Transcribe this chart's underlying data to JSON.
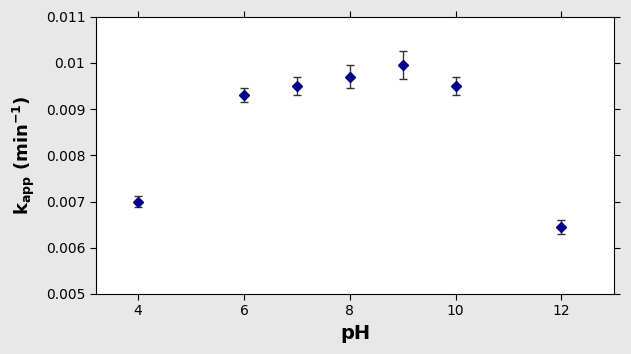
{
  "x": [
    4,
    6,
    7,
    8,
    9,
    10,
    12
  ],
  "y": [
    0.007,
    0.0093,
    0.0095,
    0.0097,
    0.00995,
    0.0095,
    0.00645
  ],
  "yerr": [
    0.00012,
    0.00015,
    0.0002,
    0.00025,
    0.0003,
    0.0002,
    0.00015
  ],
  "marker": "D",
  "marker_color": "#00008B",
  "marker_size": 5,
  "ecolor": "#333333",
  "capsize": 3,
  "xlabel": "pH",
  "ylim": [
    0.005,
    0.011
  ],
  "xlim": [
    3.2,
    13
  ],
  "yticks": [
    0.005,
    0.006,
    0.007,
    0.008,
    0.009,
    0.01,
    0.011
  ],
  "ytick_labels": [
    "0.005",
    "0.006",
    "0.007",
    "0.008",
    "0.009",
    "0.01",
    "0.011"
  ],
  "xticks": [
    4,
    6,
    8,
    10,
    12
  ],
  "xlabel_fontsize": 14,
  "ylabel_fontsize": 13,
  "tick_fontsize": 10,
  "figure_color": "#e8e8e8",
  "plot_bg_color": "#ffffff"
}
